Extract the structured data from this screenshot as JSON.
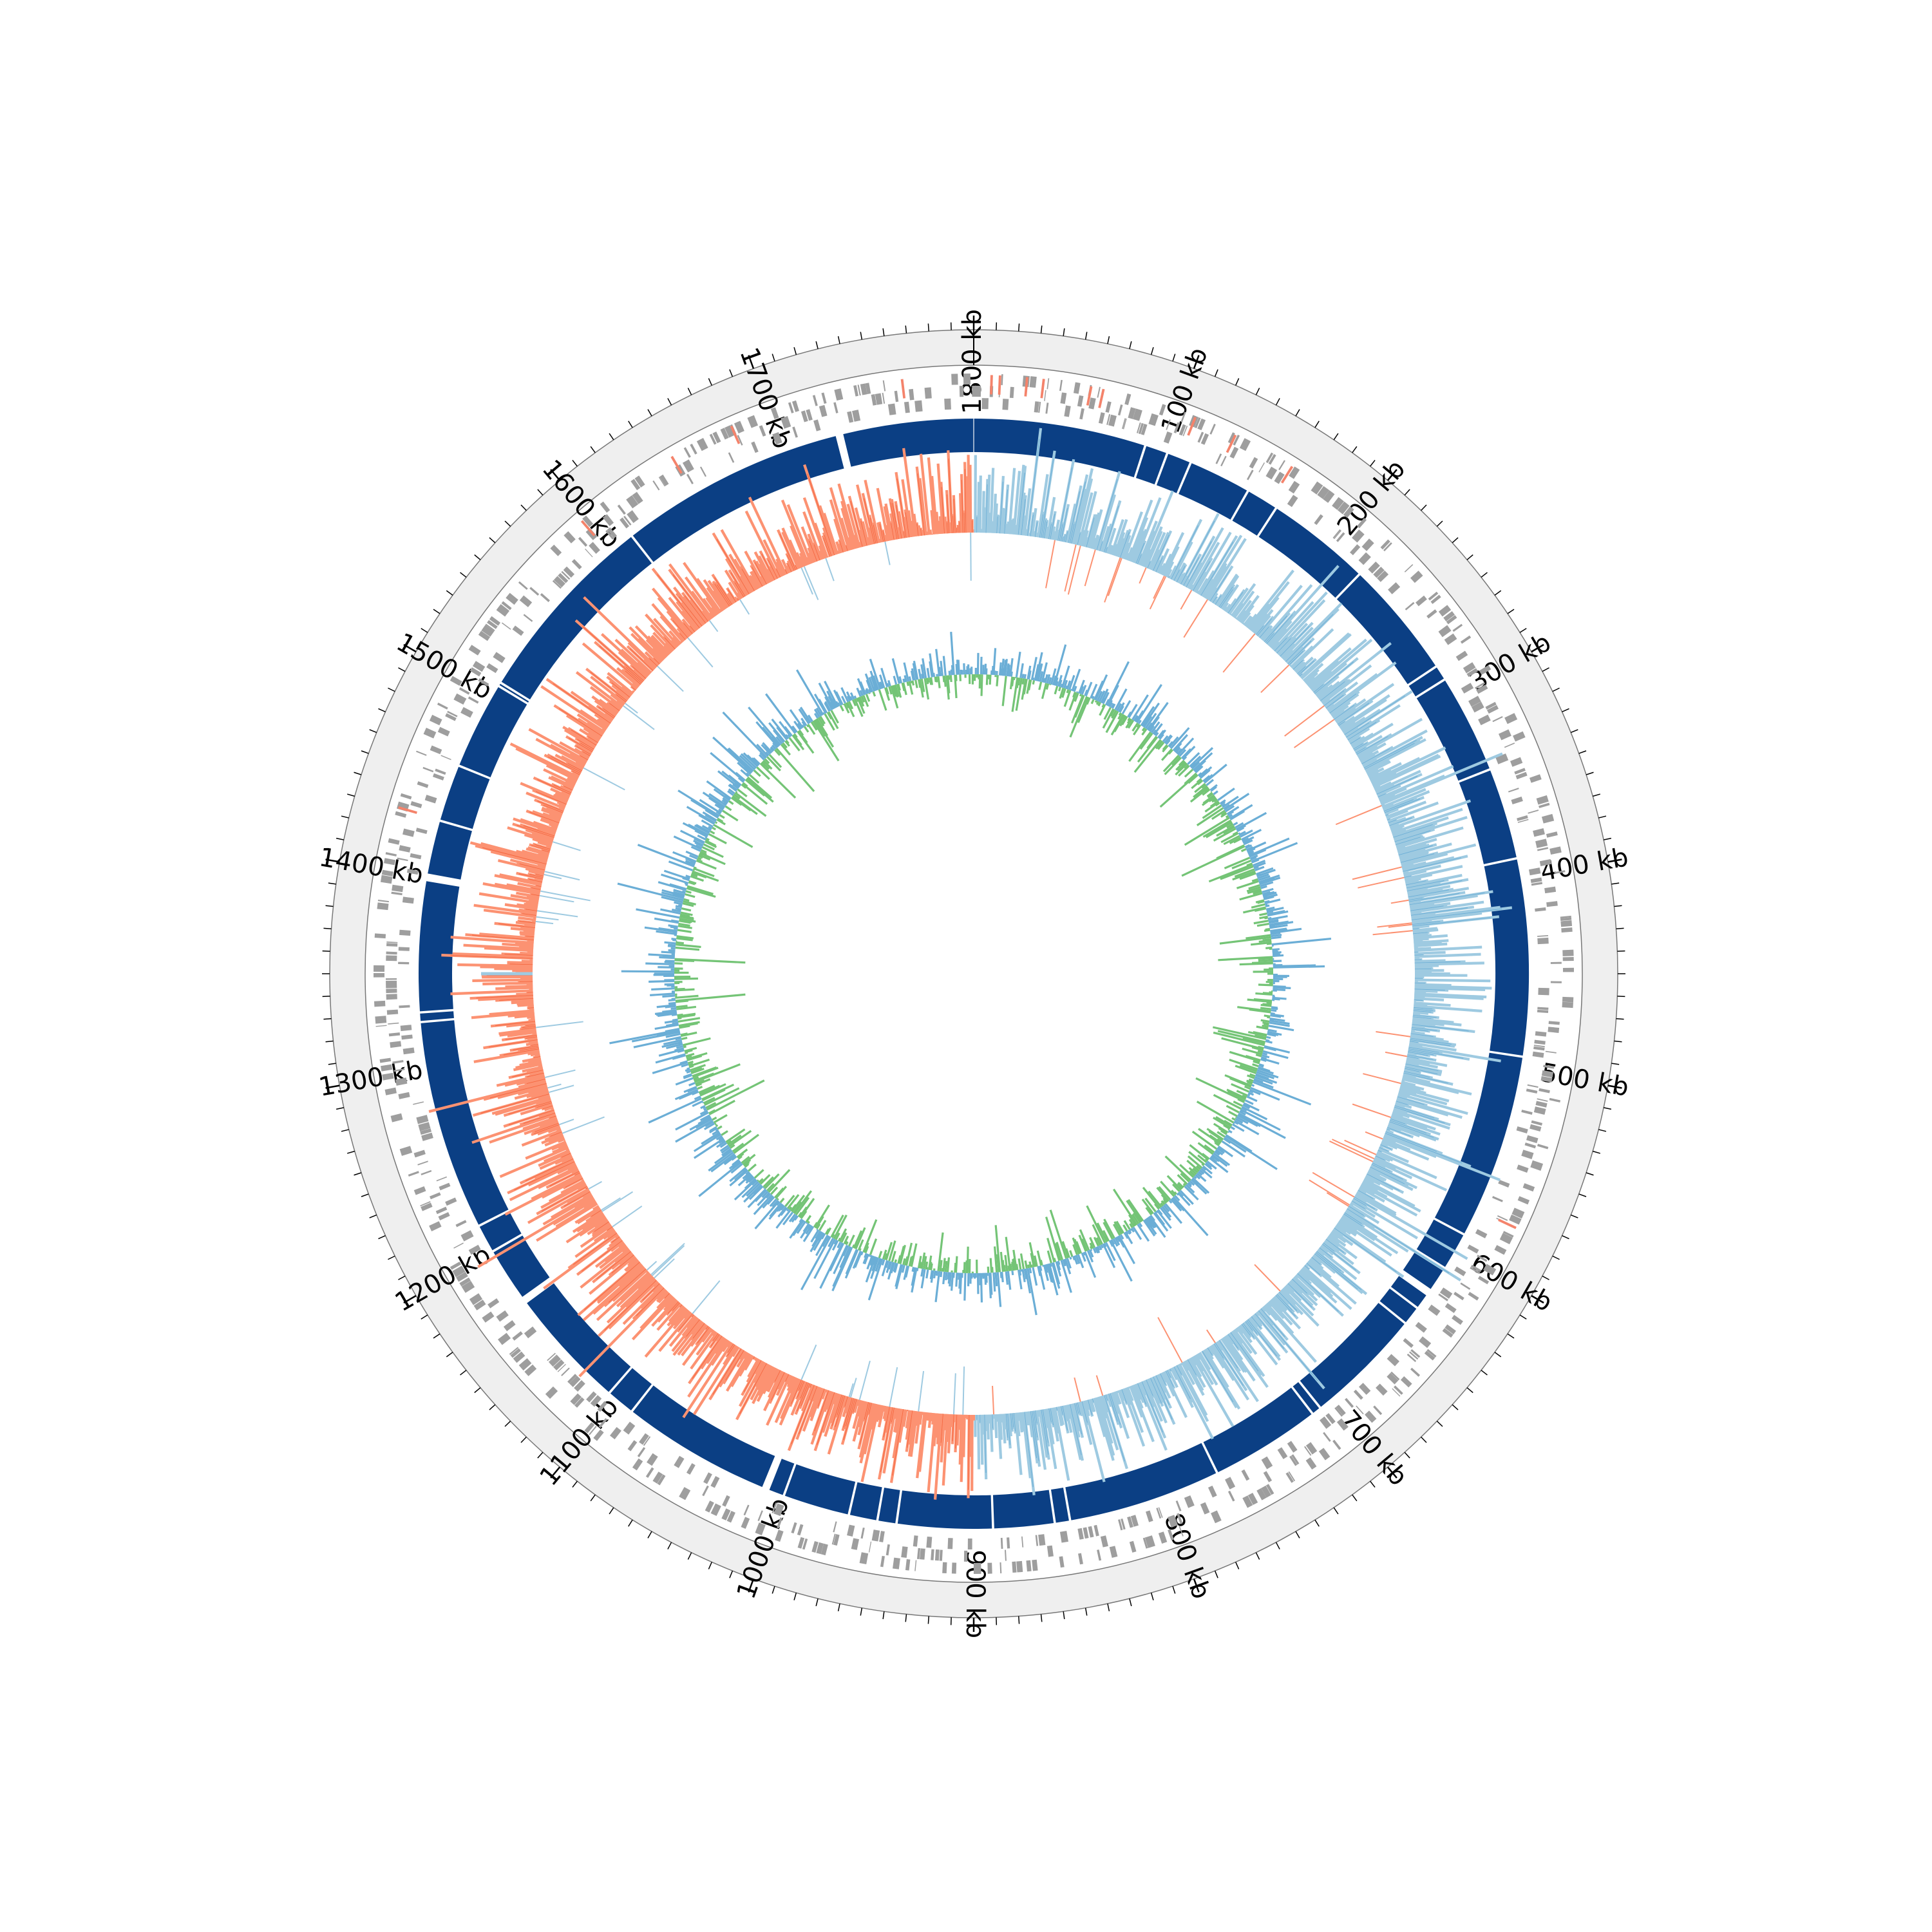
{
  "genome_map": {
    "genome_length_kb": 1800,
    "major_tick_interval_kb": 100,
    "minor_tick_interval_kb": 10,
    "tick_labels": [
      "1800 kb",
      "100 kb",
      "200 kb",
      "300 kb",
      "400 kb",
      "500 kb",
      "600 kb",
      "700 kb",
      "800 kb",
      "900 kb",
      "1000 kb",
      "1100 kb",
      "1200 kb",
      "1300 kb",
      "1400 kb",
      "1500 kb",
      "1600 kb",
      "1700 kb"
    ],
    "tick_positions_kb": [
      0,
      100,
      200,
      300,
      400,
      500,
      600,
      700,
      800,
      900,
      1000,
      1100,
      1200,
      1300,
      1400,
      1500,
      1600,
      1700
    ],
    "tracks": {
      "outer_ring_color": "#efefef",
      "cds_color": "#9e9e9e",
      "rna_color": "#f4836b",
      "contig_color": "#0b3f84",
      "gc_content_positive_color": "#9ecae1",
      "gc_content_negative_color": "#fc9272",
      "gc_skew_positive_color": "#6baed6",
      "gc_skew_negative_color": "#74c476"
    },
    "contig_gaps_kb": [
      90,
      102,
      115,
      148,
      165,
      220,
      282,
      290,
      342,
      390,
      493,
      590,
      610,
      625,
      635,
      645,
      707,
      712,
      770,
      850,
      858,
      890,
      940,
      950,
      965,
      1000,
      1010,
      1090,
      1105,
      1170,
      1200,
      1215,
      1325,
      1330,
      1400,
      1430,
      1460,
      1506,
      1508,
      1610,
      1730
    ],
    "rna_positions_kb": [
      8,
      12,
      25,
      33,
      56,
      62,
      108,
      129,
      160,
      575,
      1430,
      1595,
      1648,
      1680,
      1765
    ],
    "gc_content_ori_kb": 0,
    "gc_content_ter_kb": 900
  }
}
